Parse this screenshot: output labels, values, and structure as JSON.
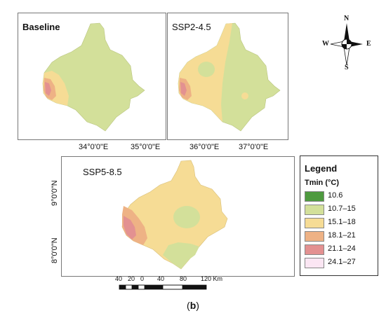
{
  "panels": [
    {
      "title": "Baseline"
    },
    {
      "title": "SSP2-4.5"
    },
    {
      "title": "SSP5-8.5"
    }
  ],
  "ticks": {
    "top_left_x": [
      "34°0'0\"E",
      "35°0'0\"E"
    ],
    "top_right_x": [
      "36°0'0\"E",
      "37°0'0\"E"
    ],
    "bottom_y": [
      "9°0'0\"N",
      "8°0'0\"N"
    ]
  },
  "compass": {
    "n": "N",
    "s": "S",
    "e": "E",
    "w": "W"
  },
  "legend": {
    "title": "Legend",
    "subtitle": "Tmin (°C)",
    "items": [
      {
        "label": "10.6",
        "color": "#4e9a3f"
      },
      {
        "label": "10.7–15",
        "color": "#d3e09a"
      },
      {
        "label": "15.1–18",
        "color": "#f6dc95"
      },
      {
        "label": "18.1–21",
        "color": "#eeb285"
      },
      {
        "label": "21.1–24",
        "color": "#e39191"
      },
      {
        "label": "24.1–27",
        "color": "#fbe6f3"
      }
    ]
  },
  "scalebar": {
    "labels": [
      "40",
      "20",
      "0",
      "40",
      "80",
      "120 Km"
    ]
  },
  "caption": {
    "open": "(",
    "letter": "b",
    "close": ")"
  }
}
